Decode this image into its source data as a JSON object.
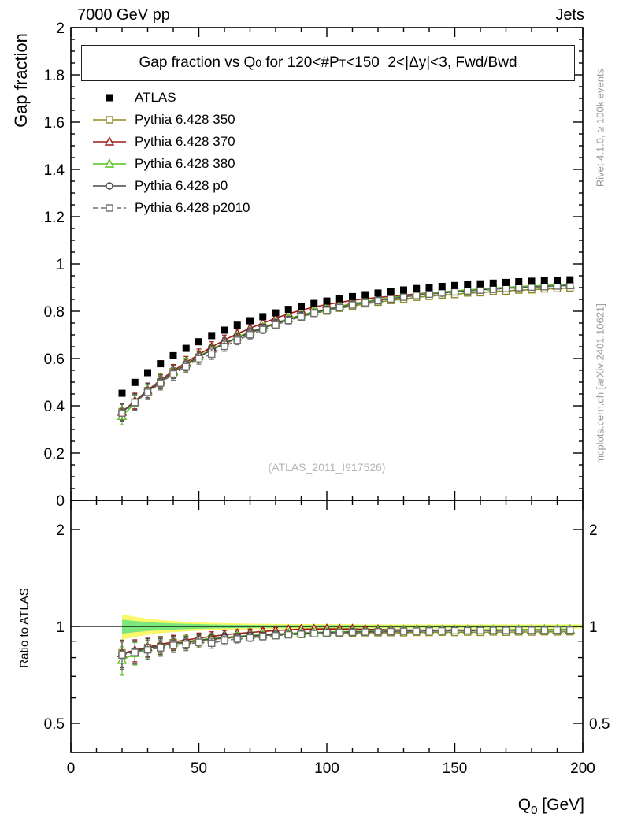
{
  "header": {
    "left": "7000 GeV pp",
    "right": "Jets"
  },
  "side_notes": {
    "top": "Rivet 4.1.0, ≥ 100k events",
    "bottom": "mcplots.cern.ch [arXiv:2401.10621]"
  },
  "watermark": "(ATLAS_2011_I917526)",
  "plot_title": {
    "p1": "Gap fraction vs Q",
    "sub1": "0",
    "p2": " for 120<#",
    "pbar": "P",
    "subT": "T",
    "p3": "<150  2<|Δy|<3, Fwd/Bwd"
  },
  "axes": {
    "x": {
      "min": 0,
      "max": 200,
      "major": [
        0,
        50,
        100,
        150,
        200
      ],
      "labels": [
        "0",
        "50",
        "100",
        "150",
        "200"
      ],
      "minor_step": 10,
      "title": {
        "p1": "Q",
        "sub": "0",
        "p2": " [GeV]"
      }
    },
    "y_top": {
      "min": 0,
      "max": 2,
      "major_step": 0.2,
      "minor_step": 0.05,
      "labels": [
        "0",
        "0.2",
        "0.4",
        "0.6",
        "0.8",
        "1",
        "1.2",
        "1.4",
        "1.6",
        "1.8",
        "2"
      ],
      "title": "Gap fraction"
    },
    "y_bottom": {
      "scale": "log",
      "min": 0.406,
      "max": 2.464,
      "major": [
        0.5,
        1,
        2
      ],
      "labels": [
        "0.5",
        "1",
        "2"
      ],
      "minor": [
        0.6,
        0.7,
        0.8,
        0.9
      ],
      "title": "Ratio to ATLAS"
    }
  },
  "chart_data": {
    "type": "line",
    "x": [
      20,
      25,
      30,
      35,
      40,
      45,
      50,
      55,
      60,
      65,
      70,
      75,
      80,
      85,
      90,
      95,
      100,
      105,
      110,
      115,
      120,
      125,
      130,
      135,
      140,
      145,
      150,
      155,
      160,
      165,
      170,
      175,
      180,
      185,
      190,
      195
    ],
    "atlas": {
      "label": "ATLAS",
      "color": "#000000",
      "marker": "square-filled",
      "line": "none",
      "err": 0.012,
      "values": [
        0.453,
        0.499,
        0.54,
        0.578,
        0.612,
        0.643,
        0.671,
        0.697,
        0.72,
        0.741,
        0.76,
        0.777,
        0.793,
        0.808,
        0.821,
        0.833,
        0.843,
        0.853,
        0.862,
        0.87,
        0.877,
        0.884,
        0.89,
        0.896,
        0.901,
        0.905,
        0.909,
        0.913,
        0.916,
        0.919,
        0.922,
        0.925,
        0.927,
        0.929,
        0.931,
        0.933
      ]
    },
    "mc_err": [
      0.036,
      0.033,
      0.031,
      0.029,
      0.027,
      0.025,
      0.023,
      0.022,
      0.021,
      0.019,
      0.018,
      0.017,
      0.016,
      0.015,
      0.015,
      0.014,
      0.013,
      0.013,
      0.012,
      0.012,
      0.011,
      0.011,
      0.01,
      0.01,
      0.01,
      0.009,
      0.009,
      0.009,
      0.009,
      0.008,
      0.008,
      0.008,
      0.008,
      0.008,
      0.008,
      0.008
    ],
    "series": [
      {
        "label": "Pythia 6.428 350",
        "color": "#8b8b20",
        "marker": "square-open",
        "line": "solid",
        "ratio": [
          0.828,
          0.832,
          0.86,
          0.866,
          0.89,
          0.889,
          0.902,
          0.917,
          0.915,
          0.93,
          0.928,
          0.941,
          0.938,
          0.95,
          0.944,
          0.951,
          0.95,
          0.953,
          0.953,
          0.956,
          0.956,
          0.957,
          0.956,
          0.959,
          0.958,
          0.96,
          0.958,
          0.961,
          0.959,
          0.962,
          0.96,
          0.962,
          0.961,
          0.963,
          0.962,
          0.963
        ]
      },
      {
        "label": "Pythia 6.428 370",
        "color": "#9e1a1a",
        "marker": "triangle-open",
        "line": "solid",
        "ratio": [
          0.825,
          0.843,
          0.862,
          0.88,
          0.895,
          0.908,
          0.92,
          0.931,
          0.942,
          0.951,
          0.958,
          0.965,
          0.971,
          0.977,
          0.98,
          0.982,
          0.983,
          0.982,
          0.982,
          0.98,
          0.978,
          0.977,
          0.975,
          0.975,
          0.974,
          0.974,
          0.974,
          0.975,
          0.974,
          0.975,
          0.974,
          0.975,
          0.975,
          0.976,
          0.975,
          0.976
        ]
      },
      {
        "label": "Pythia 6.428 380",
        "color": "#52c41e",
        "marker": "triangle-open",
        "line": "solid",
        "ratio": [
          0.785,
          0.825,
          0.85,
          0.872,
          0.886,
          0.898,
          0.908,
          0.918,
          0.924,
          0.932,
          0.938,
          0.942,
          0.947,
          0.952,
          0.955,
          0.958,
          0.961,
          0.963,
          0.965,
          0.967,
          0.969,
          0.97,
          0.971,
          0.972,
          0.973,
          0.974,
          0.975,
          0.975,
          0.976,
          0.977,
          0.977,
          0.978,
          0.978,
          0.979,
          0.979,
          0.98
        ]
      },
      {
        "label": "Pythia 6.428 p0",
        "color": "#4a4a4a",
        "marker": "circle-open",
        "line": "solid",
        "ratio": [
          0.823,
          0.836,
          0.859,
          0.868,
          0.886,
          0.892,
          0.908,
          0.91,
          0.924,
          0.926,
          0.936,
          0.937,
          0.946,
          0.945,
          0.953,
          0.952,
          0.959,
          0.957,
          0.963,
          0.961,
          0.966,
          0.964,
          0.968,
          0.967,
          0.97,
          0.968,
          0.972,
          0.97,
          0.973,
          0.971,
          0.974,
          0.972,
          0.975,
          0.973,
          0.975,
          0.974
        ]
      },
      {
        "label": "Pythia 6.428 p2010",
        "color": "#6e6e6e",
        "marker": "square-open",
        "line": "dashed",
        "ratio": [
          0.815,
          0.83,
          0.846,
          0.858,
          0.874,
          0.88,
          0.893,
          0.887,
          0.905,
          0.914,
          0.922,
          0.93,
          0.936,
          0.942,
          0.946,
          0.95,
          0.954,
          0.956,
          0.959,
          0.961,
          0.963,
          0.964,
          0.966,
          0.967,
          0.968,
          0.969,
          0.97,
          0.97,
          0.971,
          0.972,
          0.972,
          0.973,
          0.973,
          0.973,
          0.974,
          0.974
        ]
      }
    ],
    "band": {
      "center": 1.0,
      "yellow_color": "#fdf76a",
      "green_color": "#7ce87c",
      "yellow": [
        0.09,
        0.072,
        0.058,
        0.047,
        0.04,
        0.034,
        0.03,
        0.026,
        0.024,
        0.022,
        0.02,
        0.019,
        0.018,
        0.018,
        0.017,
        0.017,
        0.016,
        0.016,
        0.016,
        0.015,
        0.015,
        0.015,
        0.015,
        0.015,
        0.015,
        0.015,
        0.015,
        0.015,
        0.015,
        0.015,
        0.015,
        0.015,
        0.015,
        0.015,
        0.015,
        0.015
      ],
      "green": [
        0.05,
        0.04,
        0.032,
        0.026,
        0.022,
        0.019,
        0.017,
        0.014,
        0.013,
        0.012,
        0.011,
        0.01,
        0.01,
        0.01,
        0.009,
        0.009,
        0.009,
        0.009,
        0.009,
        0.008,
        0.008,
        0.008,
        0.008,
        0.008,
        0.008,
        0.008,
        0.008,
        0.008,
        0.008,
        0.008,
        0.008,
        0.008,
        0.008,
        0.008,
        0.008,
        0.008
      ]
    },
    "ratio_line": 1.0
  }
}
